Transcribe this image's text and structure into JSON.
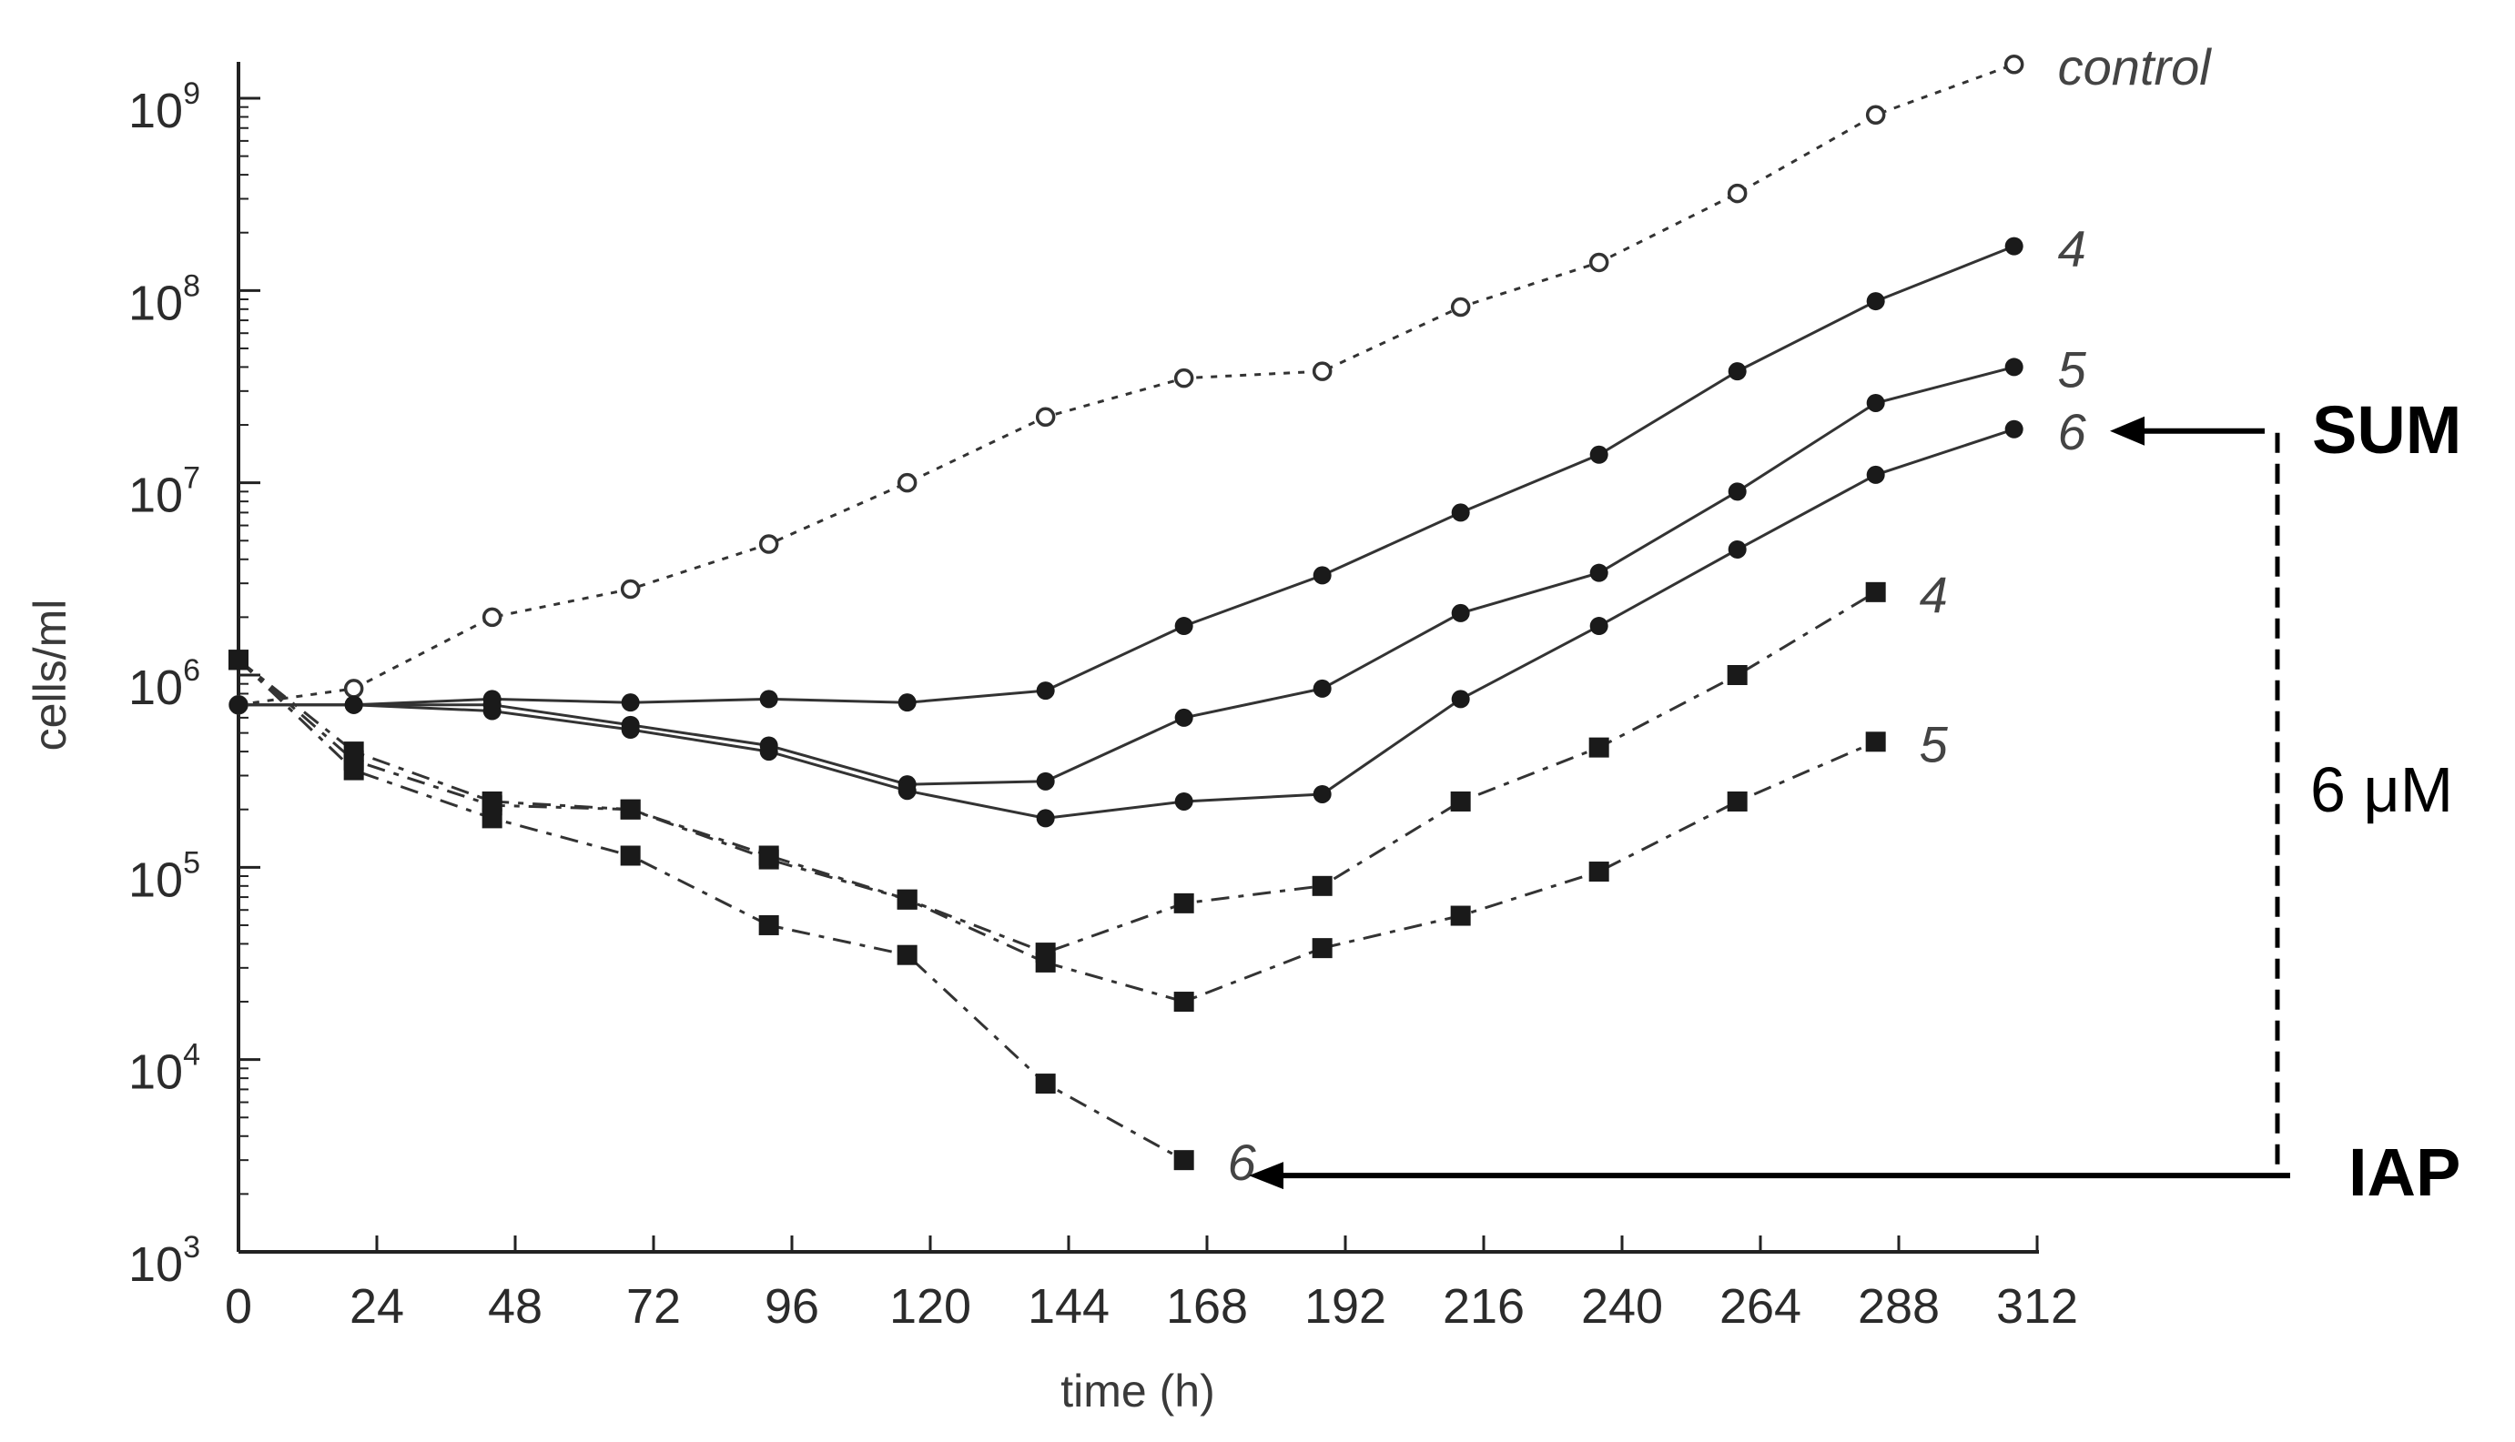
{
  "chart_data": {
    "type": "line",
    "xlabel": "time (h)",
    "ylabel": "cells/ml",
    "y_scale": "log",
    "xlim": [
      0,
      312
    ],
    "ylim": [
      1000,
      1000000000
    ],
    "x_ticks": [
      "0",
      "24",
      "48",
      "72",
      "96",
      "120",
      "144",
      "168",
      "192",
      "216",
      "240",
      "264",
      "288",
      "312"
    ],
    "y_ticks": [
      {
        "base": "10",
        "exp": "3"
      },
      {
        "base": "10",
        "exp": "4"
      },
      {
        "base": "10",
        "exp": "5"
      },
      {
        "base": "10",
        "exp": "6"
      },
      {
        "base": "10",
        "exp": "7"
      },
      {
        "base": "10",
        "exp": "8"
      },
      {
        "base": "10",
        "exp": "9"
      }
    ],
    "series": [
      {
        "name": "control",
        "group": "control",
        "marker": "open-circle",
        "line": "dotted",
        "points": [
          [
            0,
            700000
          ],
          [
            20,
            850000
          ],
          [
            44,
            2000000
          ],
          [
            68,
            2800000
          ],
          [
            92,
            4800000
          ],
          [
            116,
            10000000
          ],
          [
            140,
            22000000
          ],
          [
            164,
            35000000
          ],
          [
            188,
            38000000
          ],
          [
            212,
            82000000
          ],
          [
            236,
            140000000
          ],
          [
            260,
            320000000
          ],
          [
            284,
            820000000
          ],
          [
            308,
            1500000000
          ]
        ]
      },
      {
        "name": "4",
        "group": "SUM",
        "marker": "filled-circle",
        "line": "solid",
        "points": [
          [
            0,
            700000
          ],
          [
            20,
            700000
          ],
          [
            44,
            750000
          ],
          [
            68,
            720000
          ],
          [
            92,
            750000
          ],
          [
            116,
            720000
          ],
          [
            140,
            830000
          ],
          [
            164,
            1800000
          ],
          [
            188,
            3300000
          ],
          [
            212,
            7000000
          ],
          [
            236,
            14000000
          ],
          [
            260,
            38000000
          ],
          [
            284,
            88000000
          ],
          [
            308,
            170000000
          ]
        ]
      },
      {
        "name": "5",
        "group": "SUM",
        "marker": "filled-circle",
        "line": "solid",
        "points": [
          [
            0,
            700000
          ],
          [
            20,
            700000
          ],
          [
            44,
            700000
          ],
          [
            68,
            550000
          ],
          [
            92,
            430000
          ],
          [
            116,
            270000
          ],
          [
            140,
            280000
          ],
          [
            164,
            600000
          ],
          [
            188,
            850000
          ],
          [
            212,
            2100000
          ],
          [
            236,
            3400000
          ],
          [
            260,
            9000000
          ],
          [
            284,
            26000000
          ],
          [
            308,
            40000000
          ]
        ]
      },
      {
        "name": "6",
        "group": "SUM",
        "marker": "filled-circle",
        "line": "solid",
        "points": [
          [
            0,
            700000
          ],
          [
            20,
            700000
          ],
          [
            44,
            650000
          ],
          [
            68,
            520000
          ],
          [
            92,
            400000
          ],
          [
            116,
            250000
          ],
          [
            140,
            180000
          ],
          [
            164,
            220000
          ],
          [
            188,
            240000
          ],
          [
            212,
            750000
          ],
          [
            236,
            1800000
          ],
          [
            260,
            4500000
          ],
          [
            284,
            11000000
          ],
          [
            308,
            19000000
          ]
        ]
      },
      {
        "name": "4",
        "group": "IAP",
        "marker": "filled-square",
        "line": "dashed",
        "points": [
          [
            0,
            1200000
          ],
          [
            20,
            400000
          ],
          [
            44,
            220000
          ],
          [
            68,
            200000
          ],
          [
            92,
            110000
          ],
          [
            116,
            68000
          ],
          [
            140,
            36000
          ],
          [
            164,
            65000
          ],
          [
            188,
            80000
          ],
          [
            212,
            220000
          ],
          [
            236,
            420000
          ],
          [
            260,
            1000000
          ],
          [
            284,
            2700000
          ]
        ]
      },
      {
        "name": "5",
        "group": "IAP",
        "marker": "filled-square",
        "line": "dashed",
        "points": [
          [
            0,
            1200000
          ],
          [
            20,
            360000
          ],
          [
            44,
            210000
          ],
          [
            68,
            200000
          ],
          [
            92,
            115000
          ],
          [
            116,
            68000
          ],
          [
            140,
            32000
          ],
          [
            164,
            20000
          ],
          [
            188,
            38000
          ],
          [
            212,
            56000
          ],
          [
            236,
            95000
          ],
          [
            260,
            220000
          ],
          [
            284,
            450000
          ]
        ]
      },
      {
        "name": "6",
        "group": "IAP",
        "marker": "filled-square",
        "line": "dashed",
        "points": [
          [
            0,
            1200000
          ],
          [
            20,
            320000
          ],
          [
            44,
            180000
          ],
          [
            68,
            115000
          ],
          [
            92,
            50000
          ],
          [
            116,
            35000
          ],
          [
            140,
            7500
          ],
          [
            164,
            3000
          ]
        ]
      }
    ],
    "annotations": {
      "sum_label": "SUM",
      "iap_label": "IAP",
      "concentration_label": "6 μM"
    }
  }
}
